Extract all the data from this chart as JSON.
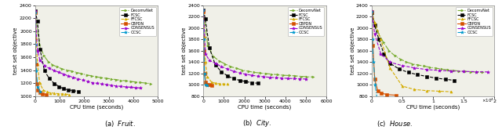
{
  "subplots": [
    {
      "title_text": "Fruit",
      "title_label": "(a)",
      "xlabel": "CPU time (seconds)",
      "ylabel": "test set objective",
      "xlim": [
        0,
        5000
      ],
      "ylim": [
        1000,
        2400
      ],
      "yticks": [
        1000,
        1200,
        1400,
        1600,
        1800,
        2000,
        2200,
        2400
      ],
      "xticks": [
        0,
        1000,
        2000,
        3000,
        4000,
        5000
      ],
      "series": [
        {
          "name": "DecomvNet",
          "color": "#77ac30",
          "linestyle": "-.",
          "marker": ">",
          "x": [
            0,
            180,
            360,
            540,
            720,
            900,
            1100,
            1300,
            1500,
            1700,
            1900,
            2100,
            2300,
            2500,
            2700,
            2900,
            3100,
            3300,
            3500,
            3700,
            3900,
            4100,
            4300,
            4500,
            4700
          ],
          "y": [
            2290,
            1790,
            1620,
            1530,
            1480,
            1450,
            1420,
            1400,
            1385,
            1365,
            1345,
            1328,
            1312,
            1298,
            1285,
            1275,
            1265,
            1255,
            1245,
            1236,
            1227,
            1218,
            1210,
            1202,
            1194
          ]
        },
        {
          "name": "FCSC",
          "color": "#000000",
          "linestyle": "--",
          "marker": "s",
          "x": [
            0,
            90,
            200,
            380,
            570,
            780,
            980,
            1150,
            1350,
            1550,
            1750
          ],
          "y": [
            2310,
            2160,
            1720,
            1390,
            1275,
            1195,
            1148,
            1115,
            1098,
            1085,
            1075
          ]
        },
        {
          "name": "FFCSC",
          "color": "#d4ac00",
          "linestyle": "--",
          "marker": "^",
          "x": [
            0,
            45,
            95,
            185,
            330,
            480,
            620,
            775,
            930,
            1080,
            1230,
            1380
          ],
          "y": [
            2290,
            1890,
            1490,
            1200,
            1095,
            1065,
            1052,
            1045,
            1040,
            1036,
            1032,
            1028
          ]
        },
        {
          "name": "CBPDN",
          "color": "#d45000",
          "linestyle": "-",
          "marker": "s",
          "x": [
            0,
            28,
            65,
            115,
            195,
            290,
            440
          ],
          "y": [
            2290,
            1490,
            1195,
            1095,
            1058,
            1038,
            1028
          ]
        },
        {
          "name": "CONSENSUS",
          "color": "#9900cc",
          "linestyle": "--",
          "marker": "*",
          "x": [
            0,
            95,
            195,
            390,
            585,
            775,
            970,
            1160,
            1355,
            1550,
            1745,
            1940,
            2135,
            2330,
            2525,
            2720,
            2915,
            3110,
            3305,
            3500,
            3695,
            3890,
            4085,
            4280
          ],
          "y": [
            2310,
            1700,
            1555,
            1468,
            1428,
            1395,
            1368,
            1340,
            1312,
            1290,
            1268,
            1248,
            1228,
            1208,
            1198,
            1188,
            1178,
            1168,
            1158,
            1150,
            1143,
            1137,
            1132,
            1126
          ]
        },
        {
          "name": "OCSC",
          "color": "#0099cc",
          "linestyle": "-.",
          "marker": "*",
          "x": [
            0,
            18,
            48,
            98,
            195
          ],
          "y": [
            2290,
            1790,
            1390,
            1148,
            1075
          ]
        }
      ]
    },
    {
      "title_text": "City",
      "title_label": "(b)",
      "xlabel": "CPU time (seconds)",
      "ylabel": "test set objective",
      "xlim": [
        0,
        6000
      ],
      "ylim": [
        800,
        2400
      ],
      "yticks": [
        800,
        1000,
        1200,
        1400,
        1600,
        1800,
        2000,
        2200,
        2400
      ],
      "xticks": [
        0,
        1000,
        2000,
        3000,
        4000,
        5000,
        6000
      ],
      "series": [
        {
          "name": "DecomvNet",
          "color": "#77ac30",
          "linestyle": "-.",
          "marker": ">",
          "x": [
            0,
            210,
            490,
            775,
            1060,
            1345,
            1630,
            1915,
            2200,
            2485,
            2770,
            3055,
            3340,
            3625,
            3910,
            4195,
            4480,
            4765,
            5050,
            5335
          ],
          "y": [
            2290,
            1695,
            1498,
            1418,
            1368,
            1318,
            1288,
            1258,
            1238,
            1218,
            1208,
            1198,
            1188,
            1178,
            1168,
            1163,
            1158,
            1148,
            1143,
            1138
          ]
        },
        {
          "name": "FCSC",
          "color": "#000000",
          "linestyle": "--",
          "marker": "s",
          "x": [
            0,
            95,
            295,
            590,
            885,
            1180,
            1475,
            1770,
            2065,
            2360,
            2655
          ],
          "y": [
            2310,
            2155,
            1645,
            1345,
            1228,
            1158,
            1108,
            1078,
            1058,
            1038,
            1028
          ]
        },
        {
          "name": "FFCSC",
          "color": "#d4ac00",
          "linestyle": "--",
          "marker": "^",
          "x": [
            0,
            48,
            98,
            195,
            395,
            595,
            795,
            995,
            1195
          ],
          "y": [
            2290,
            1845,
            1398,
            1148,
            1048,
            1028,
            1018,
            1015,
            1012
          ]
        },
        {
          "name": "CBPDN",
          "color": "#d45000",
          "linestyle": "-",
          "marker": "s",
          "x": [
            0,
            28,
            58,
            118,
            198,
            298,
            398
          ],
          "y": [
            2290,
            1598,
            1198,
            1048,
            1008,
            998,
            992
          ]
        },
        {
          "name": "CONSENSUS",
          "color": "#9900cc",
          "linestyle": "--",
          "marker": "*",
          "x": [
            0,
            98,
            295,
            590,
            885,
            1180,
            1475,
            1770,
            2065,
            2360,
            2655,
            2950,
            3245,
            3540,
            3835,
            4130,
            4425,
            4720,
            5015
          ],
          "y": [
            2310,
            1548,
            1428,
            1378,
            1318,
            1278,
            1238,
            1208,
            1188,
            1168,
            1152,
            1142,
            1132,
            1125,
            1119,
            1113,
            1109,
            1105,
            1102
          ]
        },
        {
          "name": "OCSC",
          "color": "#0099cc",
          "linestyle": "-.",
          "marker": "*",
          "x": [
            0,
            18,
            48,
            98,
            198
          ],
          "y": [
            2310,
            1798,
            1198,
            1008,
            988
          ]
        }
      ]
    },
    {
      "title_text": "House",
      "title_label": "(c)",
      "xlabel": "CPU time (seconds)",
      "ylabel": "test set objective",
      "xlim": [
        0,
        20000
      ],
      "ylim": [
        800,
        2400
      ],
      "yticks": [
        800,
        1000,
        1200,
        1400,
        1600,
        1800,
        2000,
        2200,
        2400
      ],
      "xticks": [
        0,
        5000,
        10000,
        15000,
        20000
      ],
      "xticklabels": [
        "0",
        "0.5",
        "1",
        "1.5",
        "2"
      ],
      "series": [
        {
          "name": "DecomvNet",
          "color": "#77ac30",
          "linestyle": "-.",
          "marker": ">",
          "x": [
            0,
            950,
            1900,
            2850,
            3800,
            4750,
            5700,
            6650,
            7600,
            8550,
            9500,
            10450,
            11400,
            12350,
            13300,
            14250,
            15200,
            16150,
            17100,
            18050
          ],
          "y": [
            2285,
            1948,
            1748,
            1598,
            1508,
            1448,
            1398,
            1368,
            1348,
            1328,
            1308,
            1293,
            1278,
            1263,
            1253,
            1243,
            1236,
            1230,
            1224,
            1219
          ]
        },
        {
          "name": "FCSC",
          "color": "#000000",
          "linestyle": "--",
          "marker": "s",
          "x": [
            0,
            480,
            1180,
            1980,
            2980,
            4480,
            5980,
            7480,
            8980,
            10480,
            11980,
            13480
          ],
          "y": [
            2268,
            2048,
            1798,
            1548,
            1378,
            1278,
            1218,
            1178,
            1148,
            1118,
            1098,
            1078
          ]
        },
        {
          "name": "FFCSC",
          "color": "#d4ac00",
          "linestyle": "--",
          "marker": "^",
          "x": [
            0,
            480,
            1480,
            2980,
            4980,
            6980,
            8980,
            10980,
            12980
          ],
          "y": [
            2285,
            2098,
            1798,
            1298,
            978,
            918,
            898,
            888,
            878
          ]
        },
        {
          "name": "CBPDN",
          "color": "#d45000",
          "linestyle": "-",
          "marker": "s",
          "x": [
            0,
            195,
            495,
            995,
            1495,
            2495,
            3995
          ],
          "y": [
            2285,
            1698,
            1098,
            898,
            858,
            828,
            818
          ]
        },
        {
          "name": "CONSENSUS",
          "color": "#9900cc",
          "linestyle": "--",
          "marker": "*",
          "x": [
            0,
            480,
            1480,
            2980,
            4980,
            6980,
            8980,
            10980,
            12980,
            14980,
            16980,
            18980
          ],
          "y": [
            2305,
            1898,
            1548,
            1398,
            1338,
            1298,
            1268,
            1253,
            1243,
            1236,
            1231,
            1226
          ]
        },
        {
          "name": "OCSC",
          "color": "#0099cc",
          "linestyle": "-.",
          "marker": "*",
          "x": [
            0,
            98,
            295,
            595,
            995
          ],
          "y": [
            2285,
            1798,
            1398,
            998,
            648
          ]
        }
      ]
    }
  ],
  "bg_color": "#f0f0e8",
  "legend_labels": [
    "DecomvNet",
    "FCSC",
    "FFCSC",
    "CBPDN",
    "CONSENSUS",
    "OCSC"
  ],
  "legend_colors": [
    "#77ac30",
    "#000000",
    "#d4ac00",
    "#d45000",
    "#9900cc",
    "#0099cc"
  ],
  "legend_linestyles": [
    "-.",
    "--",
    "--",
    "-",
    "--",
    "-."
  ],
  "legend_markers": [
    ">",
    "s",
    "^",
    "s",
    "*",
    "*"
  ]
}
